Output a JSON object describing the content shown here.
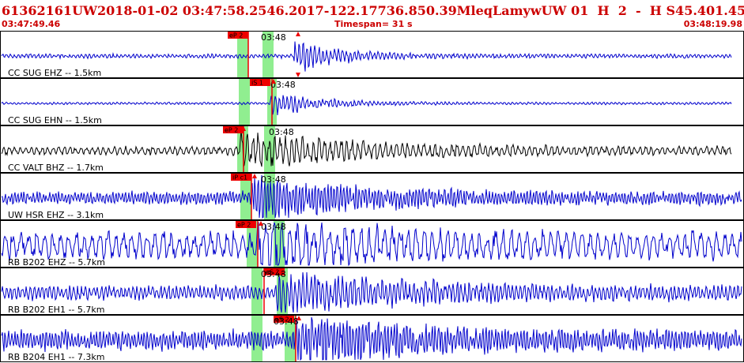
{
  "header": {
    "event_id": "61362161",
    "network": "UW",
    "datetime": "2018-01-02 03:47:58.25",
    "lat": "46.2017",
    "lon": "-122.1773",
    "depth": "6.85",
    "magnitude": "0.39",
    "mag_type": "Ml",
    "event_type": "eq",
    "status": "L",
    "author": "amyw",
    "quality": "UW 01  H  2  -  H S4",
    "value1": "5.40",
    "value2": "1.45"
  },
  "timebar": {
    "start_time": "03:47:49.46",
    "timespan": "Timespan=  31 s",
    "end_time": "03:48:19.98"
  },
  "colors": {
    "header_text": "#cc0000",
    "trace_blue": "#0000cc",
    "trace_black": "#000000",
    "pick_marker": "#ee0000",
    "window_band": "#90ee90"
  },
  "panels": [
    {
      "station_label": "CC SUG EHZ -- 1.5km",
      "pick_label": "eP 2",
      "tick_label": "03:48",
      "trace_color": "blue"
    },
    {
      "station_label": "CC SUG EHN -- 1.5km",
      "pick_label": "iS 1",
      "tick_label": "03:48",
      "trace_color": "blue"
    },
    {
      "station_label": "CC VALT BHZ -- 1.7km",
      "pick_label": "eP 2",
      "tick_label": "03:48",
      "trace_color": "black"
    },
    {
      "station_label": "UW HSR EHZ -- 3.1km",
      "pick_label": "iP c1",
      "tick_label": "03:48",
      "trace_color": "blue"
    },
    {
      "station_label": "RB B202 EHZ -- 5.7km",
      "pick_label": "eP 2",
      "tick_label": "03:48",
      "trace_color": "blue"
    },
    {
      "station_label": "RB B202 EH1 -- 5.7km",
      "pick_label": "eS 2",
      "tick_label": "03:48",
      "trace_color": "blue"
    },
    {
      "station_label": "RB B204 EH1 -- 7.3km",
      "pick_label": "eS 2",
      "tick_label": "03:48",
      "trace_color": "blue"
    }
  ]
}
